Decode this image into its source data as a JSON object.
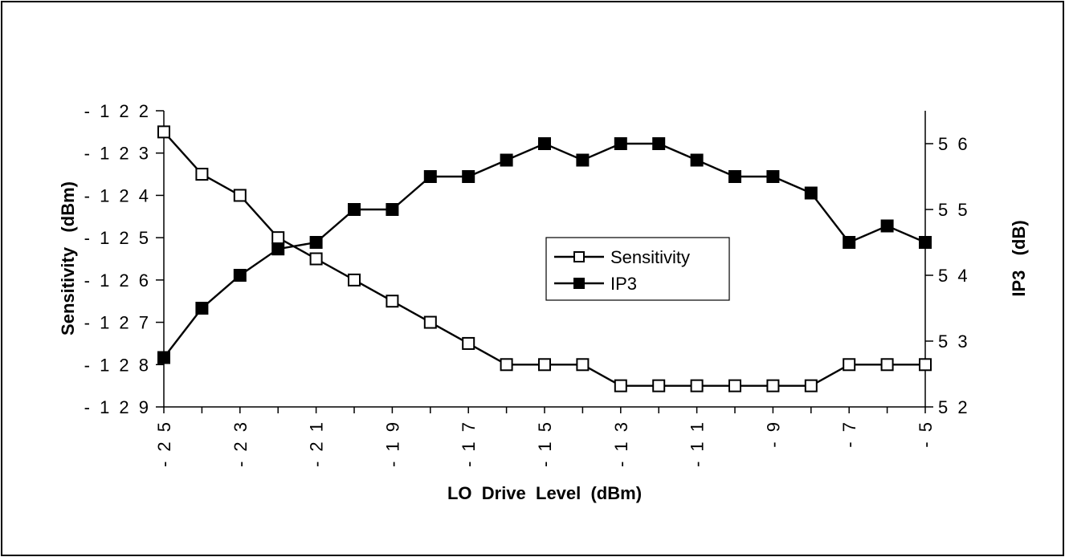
{
  "chart_data": {
    "type": "line",
    "x": [
      -25,
      -24,
      -23,
      -22,
      -21,
      -20,
      -19,
      -18,
      -17,
      -16,
      -15,
      -14,
      -13,
      -12,
      -11,
      -10,
      -9,
      -8,
      -7,
      -6,
      -5
    ],
    "xlabel": "LO  Drive  Level  (dBm)",
    "xlim": [
      -25,
      -5
    ],
    "xticks": [
      "- 2 5",
      "- 2 3",
      "- 2 1",
      "- 1 9",
      "- 1 7",
      "- 1 5",
      "- 1 3",
      "- 1 1",
      "- 9",
      "- 7",
      "- 5"
    ],
    "xtick_values": [
      -25,
      -23,
      -21,
      -19,
      -17,
      -15,
      -13,
      -11,
      -9,
      -7,
      -5
    ],
    "ylabel_left": "Sensitivity   (dBm)",
    "ylim_left": [
      -129,
      -122
    ],
    "yticks_left": [
      "- 1 2 2",
      "- 1 2 3",
      "- 1 2 4",
      "- 1 2 5",
      "- 1 2 6",
      "- 1 2 7",
      "- 1 2 8",
      "- 1 2 9"
    ],
    "ytick_values_left": [
      -122,
      -123,
      -124,
      -125,
      -126,
      -127,
      -128,
      -129
    ],
    "ylabel_right": "IP3   (dB)",
    "ylim_right": [
      52,
      56.5
    ],
    "yticks_right": [
      "5 6",
      "5 5",
      "5 4",
      "5 3",
      "5 2"
    ],
    "ytick_values_right": [
      56,
      55,
      54,
      53,
      52
    ],
    "grid": false,
    "legend_position": "center",
    "series": [
      {
        "name": "Sensitivity",
        "axis": "left",
        "marker": "open-square",
        "values": [
          -122.5,
          -123.5,
          -124,
          -125,
          -125.5,
          -126,
          -126.5,
          -127,
          -127.5,
          -128,
          -128,
          -128,
          -128.5,
          -128.5,
          -128.5,
          -128.5,
          -128.5,
          -128.5,
          -128,
          -128,
          -128
        ]
      },
      {
        "name": "IP3",
        "axis": "right",
        "marker": "filled-square",
        "values": [
          52.75,
          53.5,
          54,
          54.4,
          54.5,
          55,
          55,
          55.5,
          55.5,
          55.75,
          56,
          55.75,
          56,
          56,
          55.75,
          55.5,
          55.5,
          55.25,
          54.5,
          54.75,
          54.5
        ]
      }
    ]
  }
}
